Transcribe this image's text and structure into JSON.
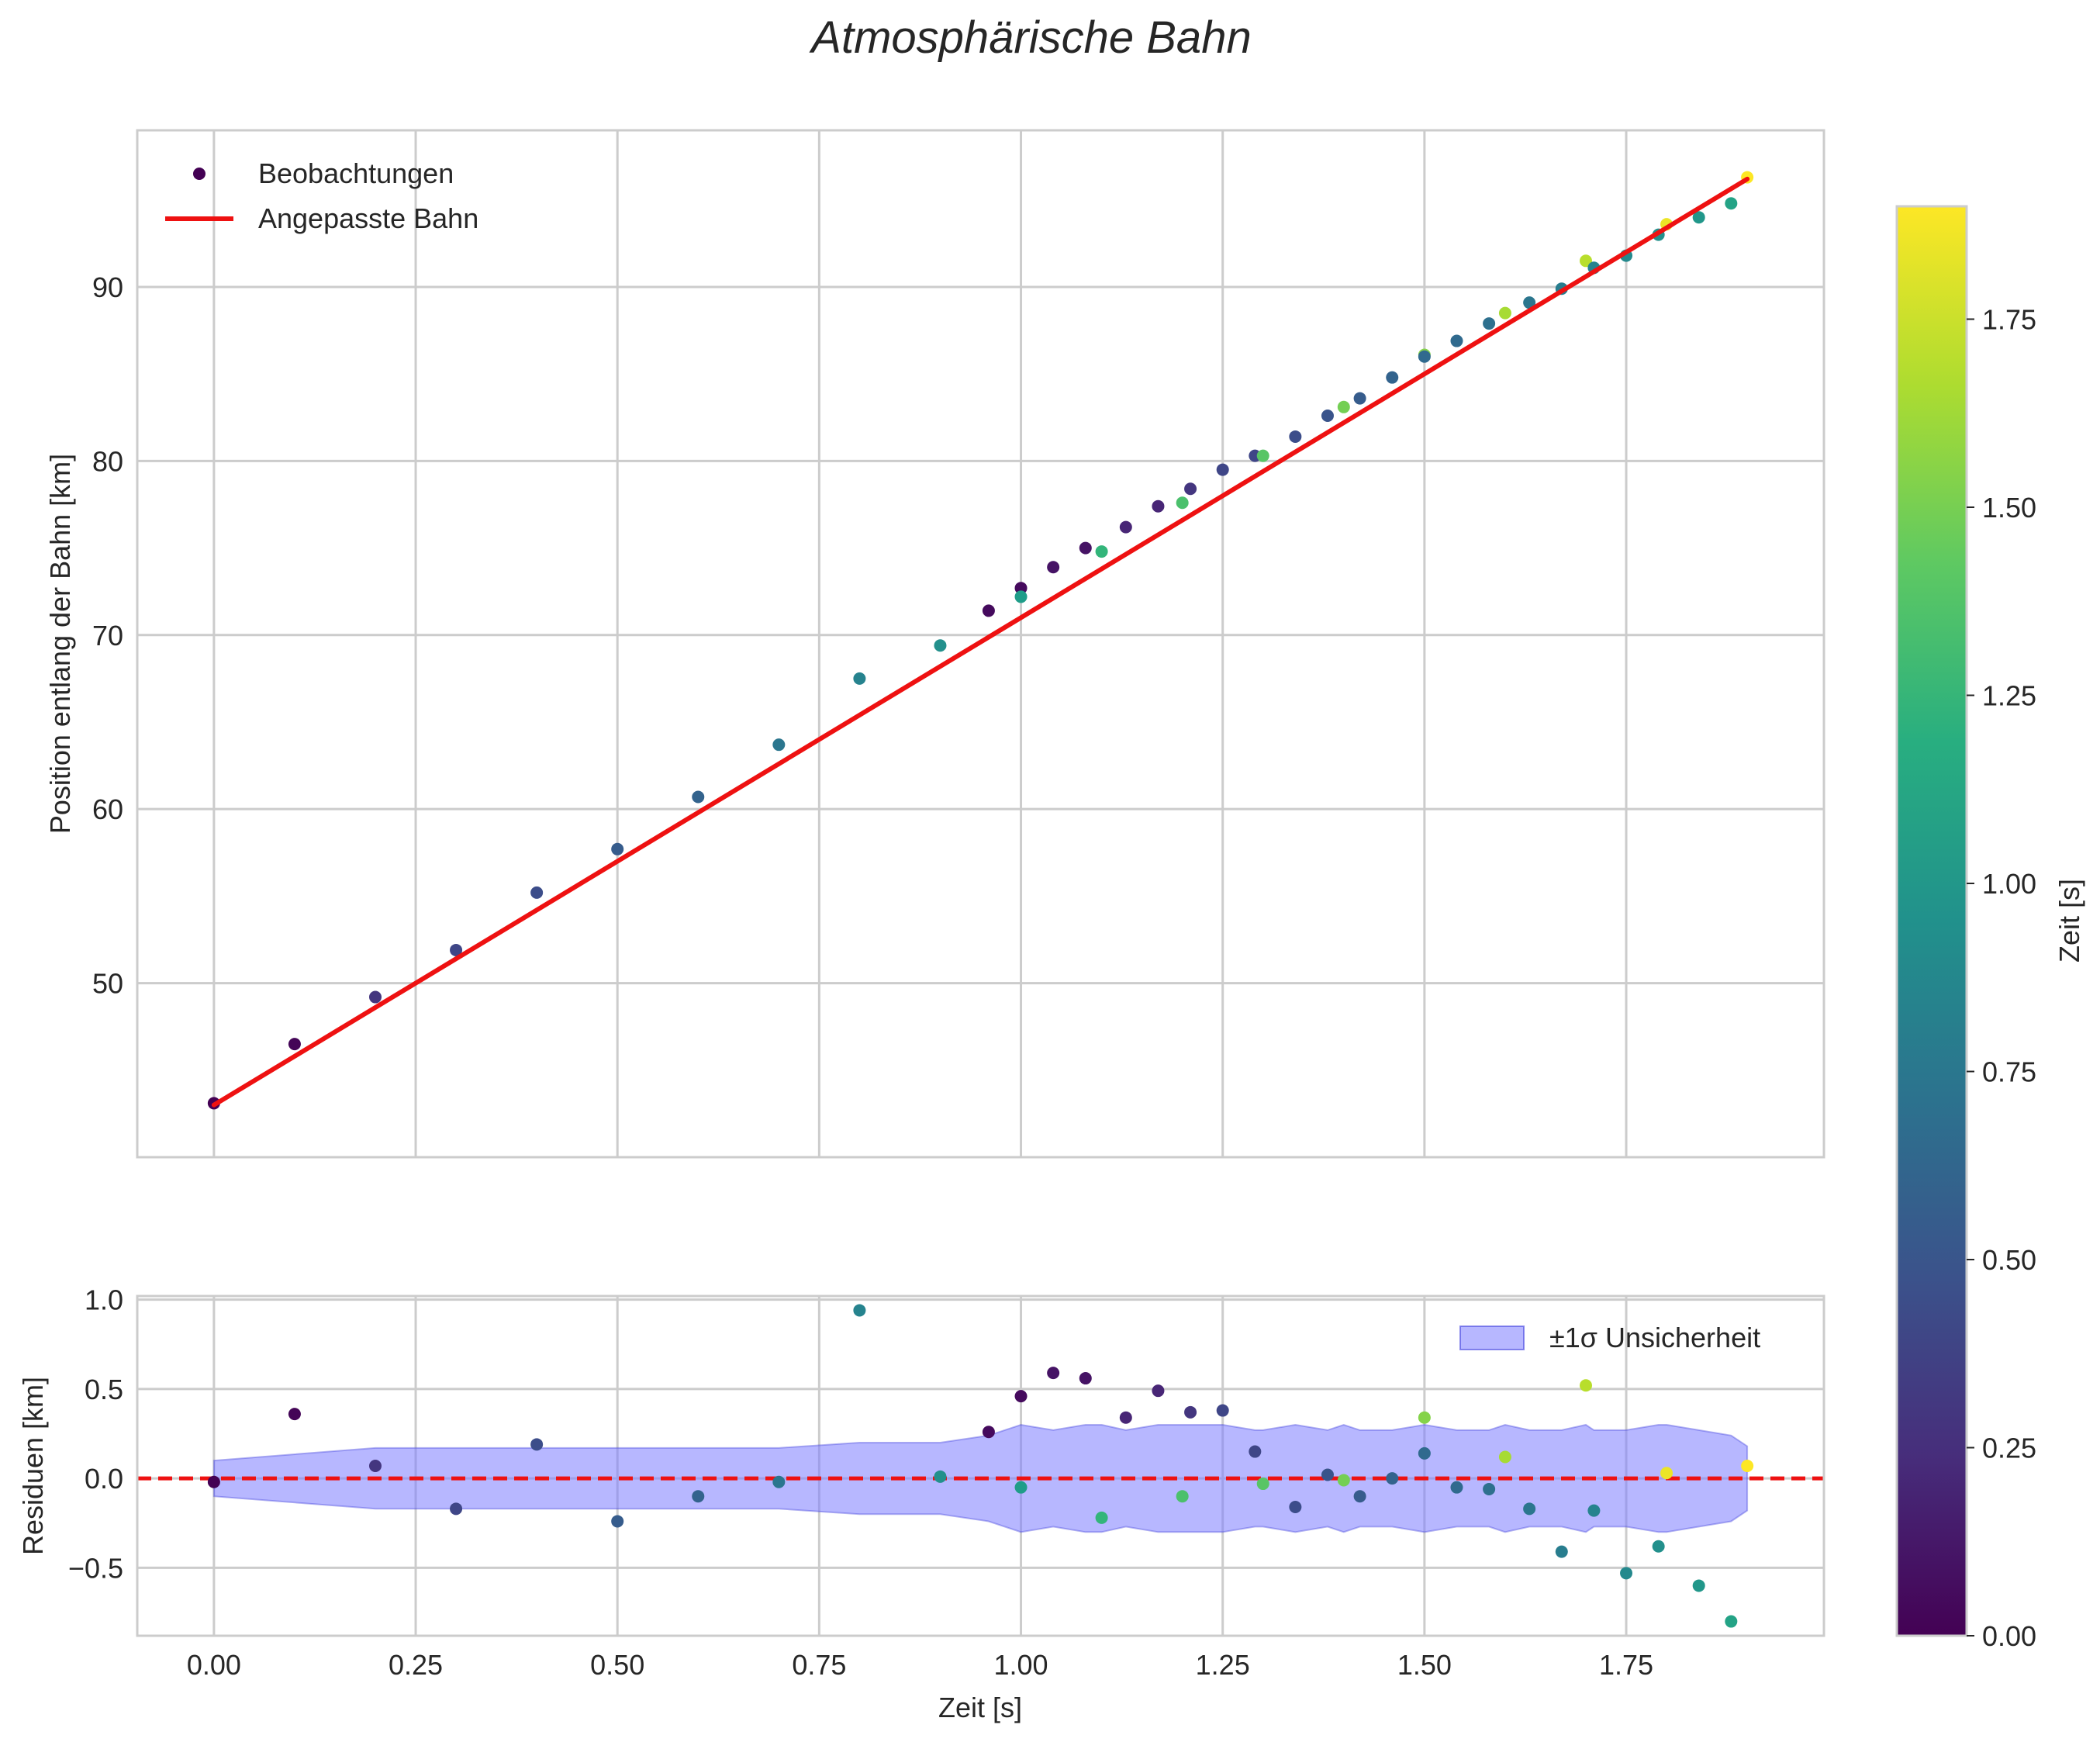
{
  "chart_data": {
    "type": "scatter",
    "title": "Atmosphärische Bahn",
    "upper": {
      "ylabel": "Position entlang der Bahn [km]",
      "ylim": [
        40.0,
        99.0
      ],
      "yticks": [
        50,
        60,
        70,
        80,
        90
      ],
      "ytick_labels": [
        "50",
        "60",
        "70",
        "80",
        "90"
      ],
      "legend": {
        "points_label": "Beobachtungen",
        "line_label": "Angepasste Bahn",
        "placement": "upper-left"
      },
      "fit_line": {
        "x": [
          0.0,
          1.9
        ],
        "y": [
          43.0,
          96.2
        ],
        "color": "#ee1111"
      }
    },
    "lower": {
      "ylabel": "Residuen [km]",
      "xlabel": "Zeit [s]",
      "ylim": [
        -0.88,
        1.02
      ],
      "yticks": [
        -0.5,
        0.0,
        0.5,
        1.0
      ],
      "ytick_labels": [
        "−0.5",
        "0.0",
        "0.5",
        "1.0"
      ],
      "zero_line_color": "#ee1111",
      "band_label": "±1σ Unsicherheit",
      "band_color": "#7b7bff",
      "band_placement": "upper-right",
      "band": {
        "x": [
          0.0,
          0.2,
          0.7,
          0.8,
          0.9,
          0.96,
          1.0,
          1.04,
          1.08,
          1.1,
          1.13,
          1.17,
          1.21,
          1.25,
          1.29,
          1.3,
          1.34,
          1.38,
          1.4,
          1.42,
          1.46,
          1.5,
          1.54,
          1.58,
          1.6,
          1.63,
          1.67,
          1.7,
          1.71,
          1.75,
          1.79,
          1.8,
          1.84,
          1.88,
          1.9
        ],
        "upper": [
          0.1,
          0.17,
          0.17,
          0.2,
          0.2,
          0.24,
          0.3,
          0.27,
          0.3,
          0.3,
          0.27,
          0.3,
          0.3,
          0.3,
          0.27,
          0.27,
          0.3,
          0.27,
          0.3,
          0.27,
          0.27,
          0.3,
          0.27,
          0.27,
          0.3,
          0.27,
          0.27,
          0.3,
          0.27,
          0.27,
          0.3,
          0.3,
          0.27,
          0.24,
          0.18
        ],
        "lower": [
          -0.1,
          -0.17,
          -0.17,
          -0.2,
          -0.2,
          -0.24,
          -0.3,
          -0.27,
          -0.3,
          -0.3,
          -0.27,
          -0.3,
          -0.3,
          -0.3,
          -0.27,
          -0.27,
          -0.3,
          -0.27,
          -0.3,
          -0.27,
          -0.27,
          -0.3,
          -0.27,
          -0.27,
          -0.3,
          -0.27,
          -0.27,
          -0.3,
          -0.27,
          -0.27,
          -0.3,
          -0.3,
          -0.27,
          -0.24,
          -0.18
        ]
      }
    },
    "xlim": [
      -0.095,
      1.995
    ],
    "xticks": [
      0.0,
      0.25,
      0.5,
      0.75,
      1.0,
      1.25,
      1.5,
      1.75
    ],
    "xtick_labels": [
      "0.00",
      "0.25",
      "0.50",
      "0.75",
      "1.00",
      "1.25",
      "1.50",
      "1.75"
    ],
    "colorbar": {
      "label": "Zeit [s]",
      "colormap": "viridis",
      "range": [
        0.0,
        1.9
      ],
      "ticks": [
        0.0,
        0.25,
        0.5,
        0.75,
        1.0,
        1.25,
        1.5,
        1.75
      ],
      "tick_labels": [
        "0.00",
        "0.25",
        "0.50",
        "0.75",
        "1.00",
        "1.25",
        "1.50",
        "1.75"
      ]
    },
    "observations": [
      {
        "t": 0.0,
        "pos": 43.1,
        "res": -0.02,
        "c": 0.0
      },
      {
        "t": 0.1,
        "pos": 46.5,
        "res": 0.36,
        "c": 0.02
      },
      {
        "t": 0.2,
        "pos": 49.2,
        "res": 0.07,
        "c": 0.3
      },
      {
        "t": 0.3,
        "pos": 51.9,
        "res": -0.17,
        "c": 0.4
      },
      {
        "t": 0.4,
        "pos": 55.2,
        "res": 0.19,
        "c": 0.45
      },
      {
        "t": 0.5,
        "pos": 57.7,
        "res": -0.24,
        "c": 0.55
      },
      {
        "t": 0.6,
        "pos": 60.7,
        "res": -0.1,
        "c": 0.6
      },
      {
        "t": 0.7,
        "pos": 63.7,
        "res": -0.02,
        "c": 0.75
      },
      {
        "t": 0.8,
        "pos": 67.5,
        "res": 0.94,
        "c": 0.85
      },
      {
        "t": 0.9,
        "pos": 69.4,
        "res": 0.01,
        "c": 0.95
      },
      {
        "t": 0.96,
        "pos": 71.4,
        "res": 0.26,
        "c": 0.05
      },
      {
        "t": 1.0,
        "pos": 72.7,
        "res": 0.46,
        "c": 0.05
      },
      {
        "t": 1.0,
        "pos": 72.2,
        "res": -0.05,
        "c": 1.05
      },
      {
        "t": 1.04,
        "pos": 73.9,
        "res": 0.59,
        "c": 0.1
      },
      {
        "t": 1.08,
        "pos": 75.0,
        "res": 0.56,
        "c": 0.1
      },
      {
        "t": 1.1,
        "pos": 74.8,
        "res": -0.22,
        "c": 1.25
      },
      {
        "t": 1.13,
        "pos": 76.2,
        "res": 0.34,
        "c": 0.2
      },
      {
        "t": 1.17,
        "pos": 77.4,
        "res": 0.49,
        "c": 0.2
      },
      {
        "t": 1.2,
        "pos": 77.6,
        "res": -0.1,
        "c": 1.35
      },
      {
        "t": 1.21,
        "pos": 78.4,
        "res": 0.37,
        "c": 0.3
      },
      {
        "t": 1.25,
        "pos": 79.5,
        "res": 0.38,
        "c": 0.4
      },
      {
        "t": 1.29,
        "pos": 80.3,
        "res": 0.15,
        "c": 0.4
      },
      {
        "t": 1.3,
        "pos": 80.3,
        "res": -0.03,
        "c": 1.4
      },
      {
        "t": 1.34,
        "pos": 81.4,
        "res": -0.16,
        "c": 0.45
      },
      {
        "t": 1.38,
        "pos": 82.6,
        "res": 0.02,
        "c": 0.5
      },
      {
        "t": 1.4,
        "pos": 83.1,
        "res": -0.01,
        "c": 1.5
      },
      {
        "t": 1.42,
        "pos": 83.6,
        "res": -0.1,
        "c": 0.55
      },
      {
        "t": 1.46,
        "pos": 84.8,
        "res": 0.0,
        "c": 0.6
      },
      {
        "t": 1.5,
        "pos": 86.1,
        "res": 0.34,
        "c": 1.55
      },
      {
        "t": 1.5,
        "pos": 86.0,
        "res": 0.14,
        "c": 0.65
      },
      {
        "t": 1.54,
        "pos": 86.9,
        "res": -0.05,
        "c": 0.65
      },
      {
        "t": 1.58,
        "pos": 87.9,
        "res": -0.06,
        "c": 0.7
      },
      {
        "t": 1.6,
        "pos": 88.5,
        "res": 0.12,
        "c": 1.65
      },
      {
        "t": 1.63,
        "pos": 89.1,
        "res": -0.17,
        "c": 0.75
      },
      {
        "t": 1.67,
        "pos": 89.9,
        "res": -0.41,
        "c": 0.8
      },
      {
        "t": 1.7,
        "pos": 91.5,
        "res": 0.52,
        "c": 1.7
      },
      {
        "t": 1.71,
        "pos": 91.1,
        "res": -0.18,
        "c": 0.85
      },
      {
        "t": 1.75,
        "pos": 91.8,
        "res": -0.53,
        "c": 0.9
      },
      {
        "t": 1.79,
        "pos": 93.0,
        "res": -0.38,
        "c": 0.95
      },
      {
        "t": 1.8,
        "pos": 93.6,
        "res": 0.03,
        "c": 1.85
      },
      {
        "t": 1.84,
        "pos": 94.0,
        "res": -0.6,
        "c": 1.0
      },
      {
        "t": 1.88,
        "pos": 94.8,
        "res": -0.8,
        "c": 1.1
      },
      {
        "t": 1.9,
        "pos": 96.3,
        "res": 0.07,
        "c": 1.9
      }
    ]
  }
}
